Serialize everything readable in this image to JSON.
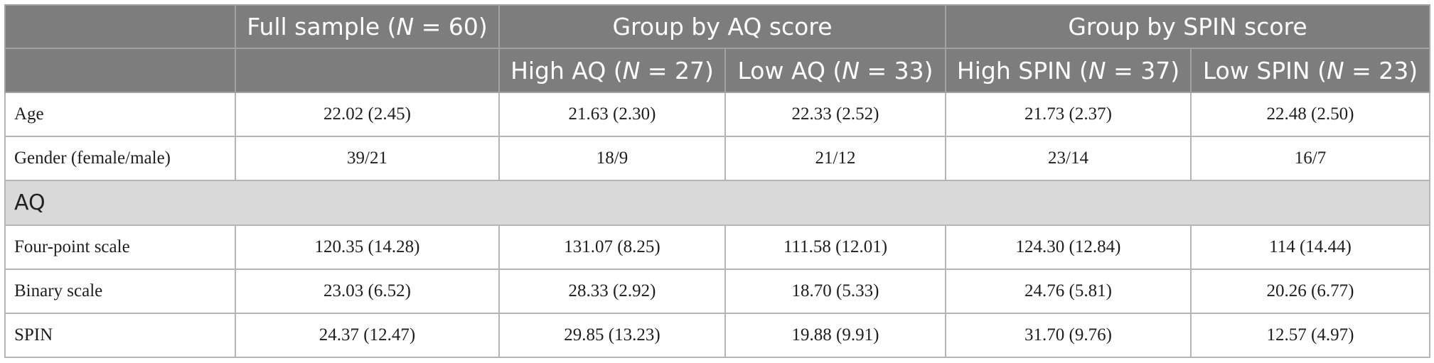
{
  "header": {
    "full_sample": {
      "prefix": "Full sample (",
      "n_label": "N",
      "suffix": " = 60)"
    },
    "group_aq": "Group by AQ score",
    "group_spin": "Group by SPIN score",
    "subgroups": [
      {
        "prefix": "High AQ (",
        "n_label": "N",
        "suffix": " = 27)"
      },
      {
        "prefix": "Low AQ (",
        "n_label": "N",
        "suffix": " = 33)"
      },
      {
        "prefix": "High SPIN (",
        "n_label": "N",
        "suffix": " = 37)"
      },
      {
        "prefix": "Low SPIN (",
        "n_label": "N",
        "suffix": " = 23)"
      }
    ]
  },
  "rows": {
    "age": {
      "label": "Age",
      "values": [
        "22.02 (2.45)",
        "21.63 (2.30)",
        "22.33 (2.52)",
        "21.73 (2.37)",
        "22.48 (2.50)"
      ]
    },
    "gender": {
      "label": "Gender (female/male)",
      "values": [
        "39/21",
        "18/9",
        "21/12",
        "23/14",
        "16/7"
      ]
    },
    "aq_section": {
      "label": "AQ"
    },
    "four_point": {
      "label": "Four-point scale",
      "values": [
        "120.35 (14.28)",
        "131.07 (8.25)",
        "111.58 (12.01)",
        "124.30 (12.84)",
        "114 (14.44)"
      ]
    },
    "binary": {
      "label": "Binary scale",
      "values": [
        "23.03 (6.52)",
        "28.33 (2.92)",
        "18.70 (5.33)",
        "24.76 (5.81)",
        "20.26 (6.77)"
      ]
    },
    "spin": {
      "label": "SPIN",
      "values": [
        "24.37 (12.47)",
        "29.85 (13.23)",
        "19.88 (9.91)",
        "31.70 (9.76)",
        "12.57 (4.97)"
      ]
    }
  }
}
